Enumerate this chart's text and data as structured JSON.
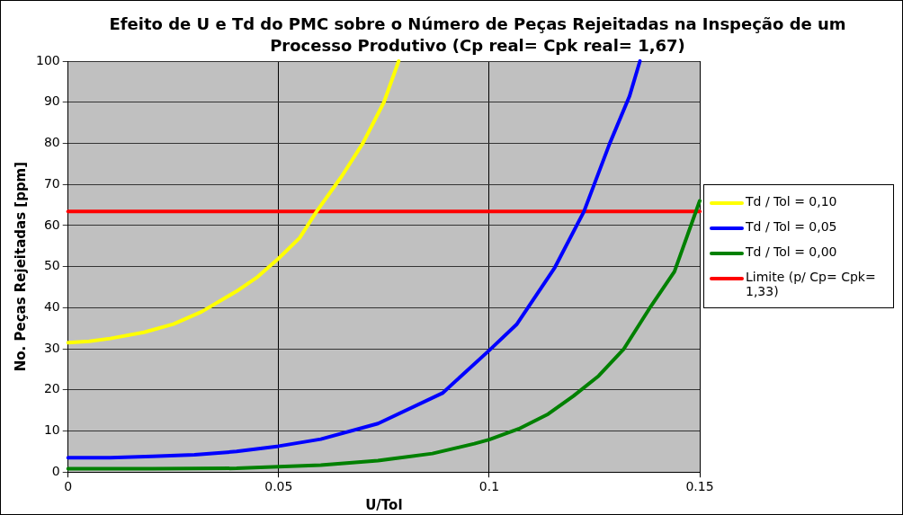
{
  "chart_data": {
    "type": "line",
    "title": "Efeito de U e Td do PMC sobre o Número de Peças Rejeitadas na Inspeção de um Processo Produtivo (Cp real= Cpk real= 1,67)",
    "xlabel": "U/Tol",
    "ylabel": "No. Peças Rejeitadas [ppm]",
    "xlim": [
      0,
      0.15
    ],
    "xticks": [
      0,
      0.05,
      0.1,
      0.15
    ],
    "ylim": [
      0,
      100
    ],
    "yticks": [
      0,
      10,
      20,
      30,
      40,
      50,
      60,
      70,
      80,
      90,
      100
    ],
    "grid": true,
    "legend": "right",
    "marker": "none",
    "line_style": "solid",
    "series": [
      {
        "name": "Td / Tol = 0,10",
        "color": "#ffff00",
        "x": [
          0,
          0.005,
          0.01,
          0.018,
          0.025,
          0.0317,
          0.04,
          0.045,
          0.05,
          0.055,
          0.059,
          0.065,
          0.07,
          0.075,
          0.0785
        ],
        "values": [
          31.5,
          31.8,
          32.5,
          34,
          36,
          39,
          44,
          47.5,
          52,
          57,
          63.4,
          72,
          80,
          90,
          100
        ]
      },
      {
        "name": "Td / Tol = 0,05",
        "color": "#0000ff",
        "x": [
          0,
          0.01,
          0.02,
          0.03,
          0.04,
          0.05,
          0.06,
          0.0736,
          0.0889,
          0.1,
          0.1065,
          0.1156,
          0.1225,
          0.1286,
          0.1333,
          0.1358
        ],
        "values": [
          3.5,
          3.5,
          3.8,
          4.2,
          5,
          6.3,
          8,
          11.8,
          19.2,
          29.6,
          35.9,
          49.8,
          63.4,
          79.9,
          91.4,
          100
        ]
      },
      {
        "name": "Td / Tol = 0,00",
        "color": "#008000",
        "x": [
          0,
          0.02,
          0.04,
          0.05,
          0.06,
          0.0736,
          0.0865,
          0.0965,
          0.1,
          0.107,
          0.114,
          0.12,
          0.126,
          0.132,
          0.1385,
          0.144,
          0.15
        ],
        "values": [
          0.8,
          0.8,
          0.9,
          1.3,
          1.7,
          2.8,
          4.5,
          6.9,
          7.9,
          10.5,
          14.1,
          18.5,
          23.4,
          30,
          40.5,
          48.8,
          66
        ]
      },
      {
        "name": "Limite (p/ Cp= Cpk= 1,33)",
        "color": "#ff0000",
        "x": [
          0,
          0.15
        ],
        "values": [
          63.4,
          63.4
        ]
      }
    ]
  }
}
